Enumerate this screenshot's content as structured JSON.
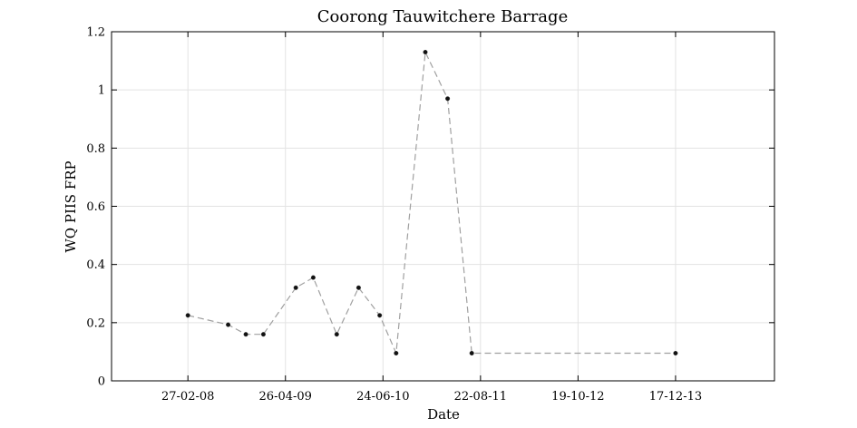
{
  "chart_data": {
    "type": "line",
    "title": "Coorong Tauwitchere Barrage",
    "xlabel": "Date",
    "ylabel": "WQ PIIS FRP",
    "x_axis_type": "date",
    "xlim": [
      "2007-04-01",
      "2015-02-20"
    ],
    "ylim": [
      0,
      1.2
    ],
    "yticks": [
      0,
      0.2,
      0.4,
      0.6,
      0.8,
      1,
      1.2
    ],
    "ytick_labels": [
      "0",
      "0.2",
      "0.4",
      "0.6",
      "0.8",
      "1",
      "1.2"
    ],
    "xticks": [
      "2008-02-27",
      "2009-04-26",
      "2010-06-24",
      "2011-08-22",
      "2012-10-19",
      "2013-12-17"
    ],
    "xtick_labels": [
      "27-02-08",
      "26-04-09",
      "24-06-10",
      "22-08-11",
      "19-10-12",
      "17-12-13"
    ],
    "grid": true,
    "series": [
      {
        "points": [
          {
            "x": "2008-02-27",
            "y": 0.225
          },
          {
            "x": "2008-08-20",
            "y": 0.193
          },
          {
            "x": "2008-11-05",
            "y": 0.16
          },
          {
            "x": "2009-01-20",
            "y": 0.16
          },
          {
            "x": "2009-06-10",
            "y": 0.32
          },
          {
            "x": "2009-08-25",
            "y": 0.355
          },
          {
            "x": "2009-12-05",
            "y": 0.16
          },
          {
            "x": "2010-03-10",
            "y": 0.32
          },
          {
            "x": "2010-06-10",
            "y": 0.225
          },
          {
            "x": "2010-08-20",
            "y": 0.095
          },
          {
            "x": "2010-12-25",
            "y": 1.13
          },
          {
            "x": "2011-04-01",
            "y": 0.97
          },
          {
            "x": "2011-07-15",
            "y": 0.095
          },
          {
            "x": "2013-12-17",
            "y": 0.095
          }
        ],
        "color": "#a0a0a0",
        "line_style": "dashed",
        "marker_color": "#111111"
      }
    ]
  }
}
